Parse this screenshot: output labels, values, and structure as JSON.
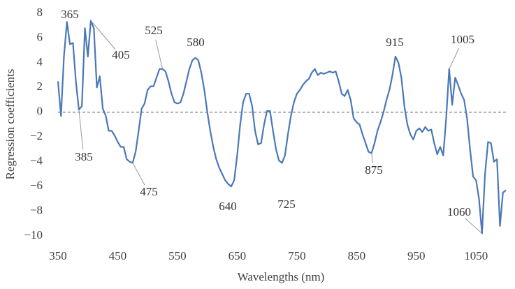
{
  "chart_data": {
    "type": "line",
    "x_label": "Wavelengths (nm)",
    "y_label": "Regression coefficients",
    "xlim": [
      350,
      1100
    ],
    "ylim": [
      -10,
      8
    ],
    "xticks": [
      350,
      450,
      550,
      650,
      750,
      850,
      950,
      1050
    ],
    "yticks": [
      {
        "value": -10,
        "label": "−10"
      },
      {
        "value": -8,
        "label": "−8"
      },
      {
        "value": -6,
        "label": "−6"
      },
      {
        "value": -4,
        "label": "−4"
      },
      {
        "value": -2,
        "label": "−2"
      },
      0,
      2,
      4,
      6,
      8
    ],
    "zero_line": true,
    "x": [
      350,
      355,
      360,
      365,
      370,
      375,
      380,
      385,
      390,
      395,
      400,
      405,
      410,
      415,
      420,
      425,
      430,
      435,
      440,
      445,
      450,
      455,
      460,
      465,
      470,
      475,
      480,
      485,
      490,
      495,
      500,
      505,
      510,
      515,
      520,
      525,
      530,
      535,
      540,
      545,
      550,
      555,
      560,
      565,
      570,
      575,
      580,
      585,
      590,
      595,
      600,
      605,
      610,
      615,
      620,
      625,
      630,
      635,
      640,
      645,
      650,
      655,
      660,
      665,
      670,
      675,
      680,
      685,
      690,
      695,
      700,
      705,
      710,
      715,
      720,
      725,
      730,
      735,
      740,
      745,
      750,
      755,
      760,
      765,
      770,
      775,
      780,
      785,
      790,
      795,
      800,
      805,
      810,
      815,
      820,
      825,
      830,
      835,
      840,
      845,
      850,
      855,
      860,
      865,
      870,
      875,
      880,
      885,
      890,
      895,
      900,
      905,
      910,
      915,
      920,
      925,
      930,
      935,
      940,
      945,
      950,
      955,
      960,
      965,
      970,
      975,
      980,
      985,
      990,
      995,
      1000,
      1005,
      1010,
      1015,
      1020,
      1025,
      1030,
      1035,
      1040,
      1045,
      1050,
      1055,
      1060,
      1065,
      1070,
      1075,
      1080,
      1085,
      1090,
      1095,
      1100
    ],
    "series": [
      {
        "color": "#4a78b8",
        "values": [
          2.5,
          -0.3,
          4.5,
          7.3,
          5.5,
          5.6,
          2.5,
          0.2,
          0.5,
          6.8,
          4.5,
          7.4,
          6.8,
          2.0,
          2.9,
          0.3,
          -0.3,
          -1.5,
          -1.5,
          -1.9,
          -2.4,
          -2.8,
          -2.8,
          -3.8,
          -4.0,
          -4.1,
          -3.2,
          -1.5,
          0.3,
          0.7,
          1.8,
          2.1,
          2.1,
          2.8,
          3.5,
          3.5,
          3.3,
          2.5,
          1.5,
          0.8,
          0.7,
          0.8,
          1.5,
          2.5,
          3.5,
          4.2,
          4.4,
          4.2,
          3.2,
          1.8,
          0,
          -1.5,
          -2.8,
          -3.8,
          -4.5,
          -5.0,
          -5.5,
          -5.8,
          -6.0,
          -5.5,
          -3.5,
          -1.0,
          0.8,
          1.5,
          1.5,
          0.5,
          -1.5,
          -2.6,
          -2.5,
          -1.0,
          0.1,
          0.1,
          -1.5,
          -3.0,
          -3.9,
          -4.1,
          -3.5,
          -1.8,
          -0.3,
          0.8,
          1.5,
          1.8,
          2.2,
          2.5,
          2.7,
          3.2,
          3.5,
          3.0,
          3.2,
          3.1,
          3.2,
          3.3,
          3.2,
          3.3,
          2.5,
          1.5,
          1.3,
          1.8,
          1.0,
          -0.5,
          -0.8,
          -1.0,
          -1.8,
          -2.5,
          -3.2,
          -3.3,
          -2.5,
          -1.5,
          -0.8,
          0,
          1.0,
          1.8,
          3.0,
          4.5,
          4.0,
          2.8,
          0.5,
          -1.0,
          -1.8,
          -2.2,
          -1.5,
          -1.3,
          -1.6,
          -1.2,
          -1.5,
          -1.4,
          -2.5,
          -3.4,
          -2.8,
          -3.5,
          -0.5,
          3.5,
          0.6,
          2.8,
          2.2,
          1.5,
          1.0,
          -0.5,
          -3.0,
          -5.2,
          -5.5,
          -7.0,
          -9.8,
          -5.0,
          -2.4,
          -2.5,
          -4.0,
          -3.8,
          -9.2,
          -6.5,
          -6.3
        ]
      }
    ],
    "annotations": [
      {
        "label": "365",
        "x": 365
      },
      {
        "label": "385",
        "x": 385
      },
      {
        "label": "405",
        "x": 405
      },
      {
        "label": "475",
        "x": 475
      },
      {
        "label": "525",
        "x": 525
      },
      {
        "label": "580",
        "x": 580
      },
      {
        "label": "640",
        "x": 640
      },
      {
        "label": "725",
        "x": 725
      },
      {
        "label": "875",
        "x": 875
      },
      {
        "label": "915",
        "x": 915
      },
      {
        "label": "1005",
        "x": 1005
      },
      {
        "label": "1060",
        "x": 1060
      }
    ]
  }
}
